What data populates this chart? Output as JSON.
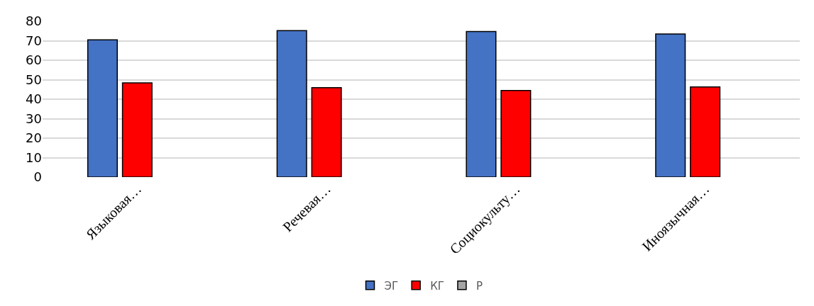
{
  "chart_data": {
    "type": "bar",
    "categories": [
      "Языковая…",
      "Речевая…",
      "Социокульту…",
      "Иноязычная…"
    ],
    "series": [
      {
        "name": "ЭГ",
        "color": "#4472c4",
        "values": [
          70.5,
          75.2,
          74.7,
          73.5
        ]
      },
      {
        "name": "КГ",
        "color": "#ff0000",
        "values": [
          48.4,
          45.9,
          44.5,
          46.3
        ]
      },
      {
        "name": "Р",
        "color": "#a5a5a5",
        "values": [
          null,
          null,
          null,
          null
        ]
      }
    ],
    "ylim": [
      0,
      80
    ],
    "yticks": [
      0,
      10,
      20,
      30,
      40,
      50,
      60,
      70,
      80
    ],
    "grid": "y",
    "legend": "bottom"
  }
}
